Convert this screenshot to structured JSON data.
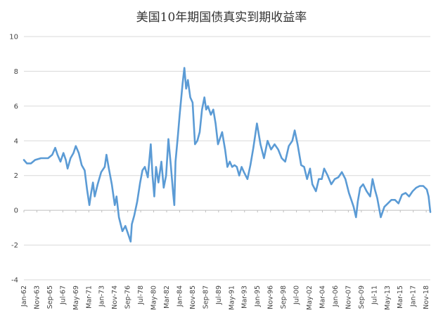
{
  "chart_data": {
    "type": "line",
    "title": "美国10年期国债真实到期收益率",
    "xlabel": "",
    "ylabel": "",
    "ylim": [
      -4,
      10
    ],
    "yticks": [
      -4,
      -2,
      0,
      2,
      4,
      6,
      8,
      10
    ],
    "grid": "horizontal",
    "legend": "none",
    "color": "#5b9bd5",
    "xlim": [
      "1962-01",
      "2019-06"
    ],
    "xtick_labels": [
      {
        "label": "Jan-62",
        "date": "1962-01"
      },
      {
        "label": "Nov-63",
        "date": "1963-11"
      },
      {
        "label": "Sep-65",
        "date": "1965-09"
      },
      {
        "label": "Jul-67",
        "date": "1967-07"
      },
      {
        "label": "May-69",
        "date": "1969-05"
      },
      {
        "label": "Mar-71",
        "date": "1971-03"
      },
      {
        "label": "Jan-73",
        "date": "1973-01"
      },
      {
        "label": "Nov-74",
        "date": "1974-11"
      },
      {
        "label": "Sep-76",
        "date": "1976-09"
      },
      {
        "label": "Jul-78",
        "date": "1978-07"
      },
      {
        "label": "May-80",
        "date": "1980-05"
      },
      {
        "label": "Mar-82",
        "date": "1982-03"
      },
      {
        "label": "Jan-84",
        "date": "1984-01"
      },
      {
        "label": "Nov-85",
        "date": "1985-11"
      },
      {
        "label": "Sep-87",
        "date": "1987-09"
      },
      {
        "label": "Jul-89",
        "date": "1989-07"
      },
      {
        "label": "May-91",
        "date": "1991-05"
      },
      {
        "label": "Mar-93",
        "date": "1993-03"
      },
      {
        "label": "Jan-95",
        "date": "1995-01"
      },
      {
        "label": "Nov-96",
        "date": "1996-11"
      },
      {
        "label": "Sep-98",
        "date": "1998-09"
      },
      {
        "label": "Jul-00",
        "date": "2000-07"
      },
      {
        "label": "May-02",
        "date": "2002-05"
      },
      {
        "label": "Mar-04",
        "date": "2004-03"
      },
      {
        "label": "Jan-06",
        "date": "2006-01"
      },
      {
        "label": "Nov-07",
        "date": "2007-11"
      },
      {
        "label": "Sep-09",
        "date": "2009-09"
      },
      {
        "label": "Jul-11",
        "date": "2011-07"
      },
      {
        "label": "May-13",
        "date": "2013-05"
      },
      {
        "label": "Mar-15",
        "date": "2015-03"
      },
      {
        "label": "Jan-17",
        "date": "2017-01"
      },
      {
        "label": "Nov-18",
        "date": "2018-11"
      }
    ],
    "series": [
      {
        "points": [
          [
            "1962-01",
            2.9
          ],
          [
            "1962-06",
            2.7
          ],
          [
            "1963-01",
            2.7
          ],
          [
            "1963-08",
            2.9
          ],
          [
            "1964-06",
            3.0
          ],
          [
            "1965-06",
            3.0
          ],
          [
            "1966-01",
            3.2
          ],
          [
            "1966-06",
            3.6
          ],
          [
            "1966-10",
            3.2
          ],
          [
            "1967-03",
            2.8
          ],
          [
            "1967-08",
            3.3
          ],
          [
            "1967-12",
            2.9
          ],
          [
            "1968-03",
            2.4
          ],
          [
            "1968-08",
            3.0
          ],
          [
            "1969-01",
            3.3
          ],
          [
            "1969-05",
            3.7
          ],
          [
            "1969-10",
            3.3
          ],
          [
            "1970-03",
            2.6
          ],
          [
            "1970-08",
            2.3
          ],
          [
            "1970-12",
            1.2
          ],
          [
            "1971-04",
            0.3
          ],
          [
            "1971-07",
            1.0
          ],
          [
            "1971-10",
            1.6
          ],
          [
            "1972-01",
            0.8
          ],
          [
            "1972-06",
            1.5
          ],
          [
            "1972-12",
            2.2
          ],
          [
            "1973-06",
            2.5
          ],
          [
            "1973-09",
            3.2
          ],
          [
            "1974-01",
            2.4
          ],
          [
            "1974-06",
            1.5
          ],
          [
            "1974-11",
            0.3
          ],
          [
            "1975-02",
            0.8
          ],
          [
            "1975-06",
            -0.4
          ],
          [
            "1975-12",
            -1.2
          ],
          [
            "1976-05",
            -0.9
          ],
          [
            "1976-10",
            -1.4
          ],
          [
            "1977-02",
            -1.8
          ],
          [
            "1977-04",
            -0.8
          ],
          [
            "1977-08",
            -0.3
          ],
          [
            "1978-01",
            0.5
          ],
          [
            "1978-06",
            1.6
          ],
          [
            "1978-10",
            2.3
          ],
          [
            "1979-02",
            2.5
          ],
          [
            "1979-07",
            1.9
          ],
          [
            "1979-12",
            3.8
          ],
          [
            "1980-03",
            2.0
          ],
          [
            "1980-06",
            0.8
          ],
          [
            "1980-09",
            2.5
          ],
          [
            "1981-01",
            1.6
          ],
          [
            "1981-06",
            2.8
          ],
          [
            "1981-10",
            1.3
          ],
          [
            "1982-02",
            2.0
          ],
          [
            "1982-06",
            4.1
          ],
          [
            "1982-10",
            2.6
          ],
          [
            "1983-02",
            1.0
          ],
          [
            "1983-04",
            0.3
          ],
          [
            "1983-06",
            2.8
          ],
          [
            "1983-10",
            4.3
          ],
          [
            "1984-01",
            5.5
          ],
          [
            "1984-06",
            7.3
          ],
          [
            "1984-09",
            8.2
          ],
          [
            "1984-12",
            7.0
          ],
          [
            "1985-03",
            7.5
          ],
          [
            "1985-07",
            6.5
          ],
          [
            "1985-11",
            6.2
          ],
          [
            "1986-03",
            3.8
          ],
          [
            "1986-07",
            4.0
          ],
          [
            "1986-11",
            4.5
          ],
          [
            "1987-03",
            5.8
          ],
          [
            "1987-07",
            6.5
          ],
          [
            "1987-10",
            5.8
          ],
          [
            "1988-01",
            6.0
          ],
          [
            "1988-06",
            5.5
          ],
          [
            "1988-10",
            5.8
          ],
          [
            "1989-02",
            5.0
          ],
          [
            "1989-06",
            3.8
          ],
          [
            "1989-10",
            4.2
          ],
          [
            "1990-01",
            4.5
          ],
          [
            "1990-06",
            3.5
          ],
          [
            "1990-10",
            2.5
          ],
          [
            "1991-02",
            2.8
          ],
          [
            "1991-06",
            2.5
          ],
          [
            "1991-10",
            2.6
          ],
          [
            "1992-02",
            2.5
          ],
          [
            "1992-06",
            2.0
          ],
          [
            "1992-10",
            2.5
          ],
          [
            "1993-02",
            2.2
          ],
          [
            "1993-08",
            1.8
          ],
          [
            "1994-01",
            2.6
          ],
          [
            "1994-06",
            3.6
          ],
          [
            "1994-12",
            5.0
          ],
          [
            "1995-06",
            3.8
          ],
          [
            "1995-12",
            3.0
          ],
          [
            "1996-06",
            4.0
          ],
          [
            "1996-12",
            3.5
          ],
          [
            "1997-06",
            3.8
          ],
          [
            "1997-12",
            3.5
          ],
          [
            "1998-06",
            3.0
          ],
          [
            "1998-12",
            2.8
          ],
          [
            "1999-06",
            3.7
          ],
          [
            "1999-12",
            4.0
          ],
          [
            "2000-04",
            4.6
          ],
          [
            "2000-09",
            3.8
          ],
          [
            "2001-03",
            2.6
          ],
          [
            "2001-08",
            2.5
          ],
          [
            "2002-01",
            1.8
          ],
          [
            "2002-06",
            2.4
          ],
          [
            "2002-10",
            1.5
          ],
          [
            "2003-04",
            1.1
          ],
          [
            "2003-09",
            1.8
          ],
          [
            "2004-02",
            1.8
          ],
          [
            "2004-06",
            2.4
          ],
          [
            "2004-12",
            2.0
          ],
          [
            "2005-06",
            1.5
          ],
          [
            "2005-12",
            1.8
          ],
          [
            "2006-06",
            1.9
          ],
          [
            "2006-12",
            2.2
          ],
          [
            "2007-06",
            1.8
          ],
          [
            "2007-12",
            1.0
          ],
          [
            "2008-04",
            0.6
          ],
          [
            "2008-08",
            0.2
          ],
          [
            "2008-12",
            -0.4
          ],
          [
            "2009-03",
            0.5
          ],
          [
            "2009-07",
            1.3
          ],
          [
            "2009-12",
            1.5
          ],
          [
            "2010-06",
            1.1
          ],
          [
            "2010-12",
            0.8
          ],
          [
            "2011-04",
            1.8
          ],
          [
            "2011-08",
            1.2
          ],
          [
            "2011-12",
            0.7
          ],
          [
            "2012-06",
            -0.4
          ],
          [
            "2012-12",
            0.2
          ],
          [
            "2013-06",
            0.4
          ],
          [
            "2013-12",
            0.6
          ],
          [
            "2014-06",
            0.6
          ],
          [
            "2014-12",
            0.4
          ],
          [
            "2015-06",
            0.9
          ],
          [
            "2015-12",
            1.0
          ],
          [
            "2016-06",
            0.8
          ],
          [
            "2016-12",
            1.1
          ],
          [
            "2017-06",
            1.3
          ],
          [
            "2017-12",
            1.4
          ],
          [
            "2018-06",
            1.4
          ],
          [
            "2018-12",
            1.2
          ],
          [
            "2019-03",
            0.8
          ],
          [
            "2019-06",
            -0.1
          ]
        ]
      }
    ]
  }
}
